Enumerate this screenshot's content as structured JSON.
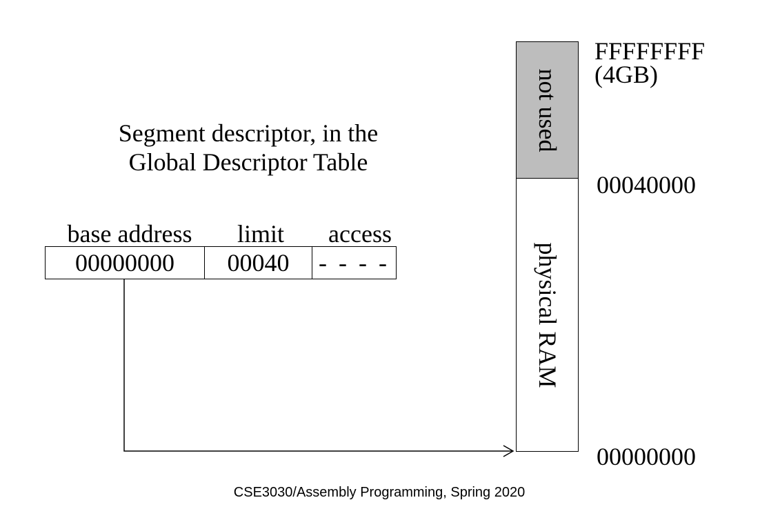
{
  "title": {
    "line1": "Segment descriptor, in the",
    "line2": "Global Descriptor Table"
  },
  "descriptor": {
    "headers": {
      "base": "base address",
      "limit": "limit",
      "access": "access"
    },
    "values": {
      "base": "00000000",
      "limit": "00040",
      "access": "- - - -"
    }
  },
  "memory": {
    "not_used_label": "not used",
    "ram_label": "physical RAM",
    "not_used_color": "#bdbdbd",
    "addresses": {
      "top": "FFFFFFFF",
      "top_note": "(4GB)",
      "limit": "00040000",
      "bottom": "00000000"
    }
  },
  "footer": "CSE3030/Assembly Programming, Spring 2020"
}
